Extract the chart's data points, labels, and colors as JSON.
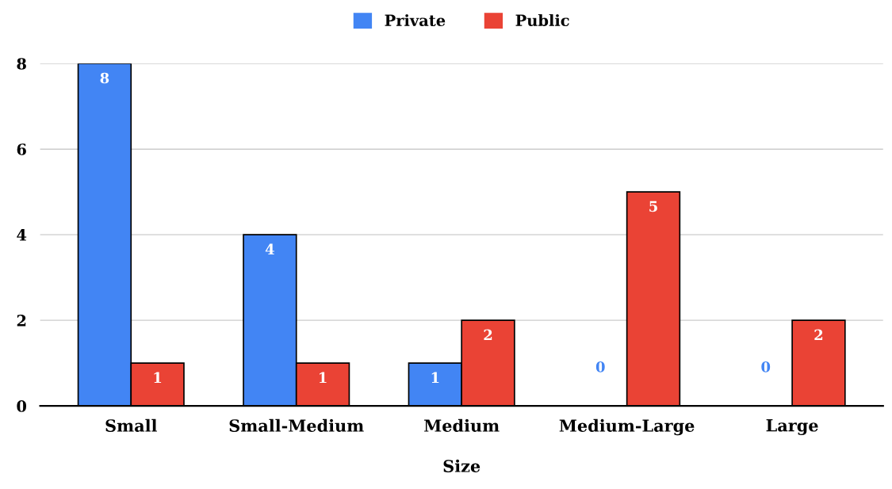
{
  "chart_data": {
    "type": "bar",
    "xlabel": "Size",
    "categories": [
      "Small",
      "Small-Medium",
      "Medium",
      "Medium-Large",
      "Large"
    ],
    "series": [
      {
        "name": "Private",
        "color": "#4285f4",
        "values": [
          8,
          4,
          1,
          0,
          0
        ]
      },
      {
        "name": "Public",
        "color": "#ea4335",
        "values": [
          1,
          1,
          2,
          5,
          2
        ]
      }
    ],
    "ylim": [
      0,
      8
    ],
    "yticks": [
      0,
      2,
      4,
      6,
      8
    ],
    "grid": "y",
    "legend": "top",
    "data_labels": true
  }
}
